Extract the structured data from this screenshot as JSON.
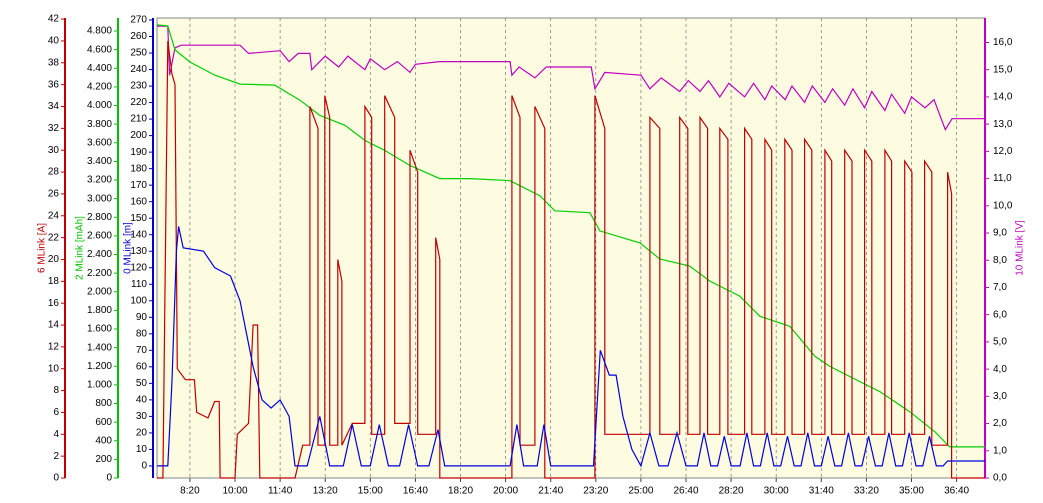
{
  "chart_data": {
    "type": "line",
    "xlim": [
      427,
      2263
    ],
    "xticks": [
      {
        "value": 500,
        "label": "8:20"
      },
      {
        "value": 600,
        "label": "10:00"
      },
      {
        "value": 700,
        "label": "11:40"
      },
      {
        "value": 800,
        "label": "13:20"
      },
      {
        "value": 900,
        "label": "15:00"
      },
      {
        "value": 1000,
        "label": "16:40"
      },
      {
        "value": 1100,
        "label": "18:20"
      },
      {
        "value": 1200,
        "label": "20:00"
      },
      {
        "value": 1300,
        "label": "21:40"
      },
      {
        "value": 1400,
        "label": "23:20"
      },
      {
        "value": 1500,
        "label": "25:00"
      },
      {
        "value": 1600,
        "label": "26:40"
      },
      {
        "value": 1700,
        "label": "28:20"
      },
      {
        "value": 1800,
        "label": "30:00"
      },
      {
        "value": 1900,
        "label": "31:40"
      },
      {
        "value": 2000,
        "label": "33:20"
      },
      {
        "value": 2100,
        "label": "35:00"
      },
      {
        "value": 2200,
        "label": "36:40"
      }
    ],
    "grid": true,
    "axes": [
      {
        "label": "6 MLink [A]",
        "color": "#c00000",
        "side": "left",
        "lim": [
          0,
          42.1
        ],
        "ticks": [
          0,
          2,
          4,
          6,
          8,
          10,
          12,
          14,
          16,
          18,
          20,
          22,
          24,
          26,
          28,
          30,
          32,
          34,
          36,
          38,
          40,
          42
        ]
      },
      {
        "label": "2 MLink [mAh]",
        "color": "#00c000",
        "side": "left",
        "lim": [
          0,
          4940
        ],
        "ticks": [
          0,
          200,
          400,
          600,
          800,
          {
            "value": 1000,
            "label": "1.000"
          },
          {
            "value": 1200,
            "label": "1.200"
          },
          {
            "value": 1400,
            "label": "1.400"
          },
          {
            "value": 1600,
            "label": "1.600"
          },
          {
            "value": 1800,
            "label": "1.800"
          },
          {
            "value": 2000,
            "label": "2.000"
          },
          {
            "value": 2200,
            "label": "2.200"
          },
          {
            "value": 2400,
            "label": "2.400"
          },
          {
            "value": 2600,
            "label": "2.600"
          },
          {
            "value": 2800,
            "label": "2.800"
          },
          {
            "value": 3000,
            "label": "3.000"
          },
          {
            "value": 3200,
            "label": "3.200"
          },
          {
            "value": 3400,
            "label": "3.400"
          },
          {
            "value": 3600,
            "label": "3.600"
          },
          {
            "value": 3800,
            "label": "3.800"
          },
          {
            "value": 4000,
            "label": "4.000"
          },
          {
            "value": 4200,
            "label": "4.200"
          },
          {
            "value": 4400,
            "label": "4.400"
          },
          {
            "value": 4600,
            "label": "4.600"
          },
          {
            "value": 4800,
            "label": "4.800"
          }
        ]
      },
      {
        "label": "0 MLink [m]",
        "color": "#0000d0",
        "side": "left",
        "lim": [
          -7.3,
          271.2
        ],
        "ticks": [
          0,
          10,
          20,
          30,
          40,
          50,
          60,
          70,
          80,
          90,
          100,
          110,
          120,
          130,
          140,
          150,
          160,
          170,
          180,
          190,
          200,
          210,
          220,
          230,
          240,
          250,
          260,
          270
        ]
      },
      {
        "label": "10 MLink [V]",
        "color": "#c000c0",
        "side": "right",
        "lim": [
          0,
          16.9
        ],
        "ticks": [
          {
            "value": 0,
            "label": "0,0"
          },
          {
            "value": 1,
            "label": "1,0"
          },
          {
            "value": 2,
            "label": "2,0"
          },
          {
            "value": 3,
            "label": "3,0"
          },
          {
            "value": 4,
            "label": "4,0"
          },
          {
            "value": 5,
            "label": "5,0"
          },
          {
            "value": 6,
            "label": "6,0"
          },
          {
            "value": 7,
            "label": "7,0"
          },
          {
            "value": 8,
            "label": "8,0"
          },
          {
            "value": 9,
            "label": "9,0"
          },
          {
            "value": 10,
            "label": "10,0"
          },
          {
            "value": 11,
            "label": "11,0"
          },
          {
            "value": 12,
            "label": "12,0"
          },
          {
            "value": 13,
            "label": "13,0"
          },
          {
            "value": 14,
            "label": "14,0"
          },
          {
            "value": 15,
            "label": "15,0"
          },
          {
            "value": 16,
            "label": "16,0"
          }
        ]
      }
    ],
    "series": [
      {
        "color": "#c000c0",
        "axis": 3,
        "x": [
          427,
          451,
          455,
          467,
          480,
          611,
          630,
          700,
          720,
          740,
          766,
          770,
          800,
          830,
          850,
          888,
          900,
          932,
          960,
          988,
          1000,
          1054,
          1210,
          1214,
          1230,
          1265,
          1290,
          1390,
          1398,
          1420,
          1500,
          1520,
          1545,
          1586,
          1605,
          1631,
          1650,
          1675,
          1695,
          1730,
          1750,
          1775,
          1790,
          1820,
          1835,
          1863,
          1880,
          1908,
          1925,
          1952,
          1970,
          1996,
          2012,
          2041,
          2056,
          2085,
          2100,
          2130,
          2150,
          2175,
          2190,
          2263
        ],
        "values": [
          16.6,
          16.6,
          14.8,
          15.8,
          15.9,
          15.9,
          15.6,
          15.7,
          15.3,
          15.6,
          15.6,
          15.0,
          15.5,
          15.1,
          15.5,
          15.0,
          15.4,
          15.0,
          15.3,
          14.9,
          15.2,
          15.3,
          15.3,
          14.8,
          15.1,
          14.7,
          15.1,
          15.1,
          14.3,
          14.9,
          14.8,
          14.3,
          14.7,
          14.2,
          14.6,
          14.2,
          14.6,
          14.0,
          14.5,
          14.0,
          14.5,
          13.9,
          14.4,
          13.9,
          14.4,
          13.8,
          14.4,
          13.8,
          14.3,
          13.7,
          14.3,
          13.6,
          14.2,
          13.5,
          14.1,
          13.4,
          14.0,
          13.6,
          13.9,
          12.8,
          13.2,
          13.2
        ]
      },
      {
        "color": "#00d000",
        "axis": 1,
        "x": [
          427,
          451,
          467,
          500,
          555,
          611,
          688,
          744,
          788,
          844,
          888,
          932,
          988,
          1054,
          1121,
          1209,
          1276,
          1309,
          1387,
          1409,
          1498,
          1542,
          1608,
          1653,
          1719,
          1764,
          1830,
          1886,
          1919,
          1985,
          2030,
          2096,
          2152,
          2185,
          2263
        ],
        "values": [
          4866,
          4855,
          4597,
          4467,
          4327,
          4230,
          4219,
          4057,
          3895,
          3787,
          3625,
          3518,
          3356,
          3215,
          3215,
          3194,
          3032,
          2870,
          2849,
          2654,
          2525,
          2352,
          2277,
          2115,
          1953,
          1737,
          1629,
          1306,
          1198,
          1036,
          928,
          712,
          496,
          334,
          334
        ]
      },
      {
        "color": "#c00000",
        "axis": 0,
        "x": [
          427,
          440,
          451,
          460,
          467,
          472,
          490,
          510,
          515,
          540,
          555,
          565,
          567,
          600,
          605,
          630,
          640,
          650,
          655,
          733,
          750,
          766,
          766,
          784,
          784,
          799,
          799,
          810,
          810,
          828,
          828,
          837,
          837,
          860,
          888,
          888,
          903,
          903,
          932,
          932,
          954,
          954,
          988,
          988,
          1005,
          1005,
          1045,
          1045,
          1054,
          1054,
          1070,
          1214,
          1214,
          1232,
          1232,
          1265,
          1265,
          1287,
          1287,
          1398,
          1398,
          1420,
          1420,
          1480,
          1520,
          1520,
          1542,
          1542,
          1586,
          1586,
          1604,
          1604,
          1631,
          1631,
          1648,
          1648,
          1675,
          1675,
          1693,
          1693,
          1730,
          1730,
          1746,
          1746,
          1775,
          1775,
          1790,
          1790,
          1819,
          1819,
          1835,
          1835,
          1863,
          1863,
          1879,
          1879,
          1908,
          1908,
          1923,
          1923,
          1952,
          1952,
          1968,
          1968,
          1996,
          1996,
          2012,
          2012,
          2041,
          2041,
          2056,
          2056,
          2085,
          2085,
          2101,
          2101,
          2129,
          2129,
          2145,
          2145,
          2180,
          2180,
          2189,
          2189,
          2263
        ],
        "values": [
          0,
          0,
          40,
          37,
          36,
          10,
          9,
          9,
          6,
          5.5,
          7,
          7,
          0,
          0,
          4,
          5,
          14,
          14,
          0,
          0,
          3,
          3,
          34,
          32,
          3,
          3,
          35,
          33,
          3,
          3,
          20,
          18,
          3,
          5,
          5,
          34,
          33,
          4,
          4,
          35,
          33,
          5,
          5,
          30,
          28,
          4,
          4,
          22,
          20,
          0,
          0,
          0,
          35,
          33,
          3,
          3,
          34,
          32,
          0,
          0,
          35,
          32,
          4,
          4,
          4,
          33,
          32,
          4,
          4,
          33,
          32,
          4,
          4,
          33,
          32,
          4,
          4,
          32,
          31,
          4,
          4,
          32,
          31,
          4,
          4,
          31,
          30,
          4,
          4,
          31,
          30,
          4,
          4,
          31,
          30,
          4,
          4,
          30,
          29,
          4,
          4,
          30,
          29,
          4,
          4,
          30,
          29,
          4,
          4,
          30,
          29,
          4,
          4,
          29,
          28,
          4,
          4,
          29,
          28,
          3,
          3,
          28,
          26,
          0,
          0
        ]
      },
      {
        "color": "#0000e0",
        "axis": 2,
        "x": [
          427,
          451,
          460,
          470,
          475,
          485,
          530,
          555,
          590,
          611,
          640,
          660,
          680,
          700,
          720,
          733,
          760,
          788,
          810,
          840,
          860,
          880,
          900,
          920,
          940,
          965,
          985,
          1005,
          1030,
          1050,
          1065,
          1210,
          1225,
          1240,
          1270,
          1285,
          1300,
          1395,
          1410,
          1430,
          1445,
          1460,
          1480,
          1500,
          1520,
          1540,
          1560,
          1580,
          1600,
          1625,
          1640,
          1655,
          1670,
          1685,
          1700,
          1720,
          1735,
          1750,
          1765,
          1780,
          1795,
          1810,
          1825,
          1840,
          1855,
          1870,
          1885,
          1900,
          1915,
          1930,
          1945,
          1960,
          1975,
          1990,
          2005,
          2020,
          2035,
          2050,
          2065,
          2080,
          2095,
          2110,
          2125,
          2140,
          2155,
          2170,
          2180,
          2263
        ],
        "values": [
          0,
          0,
          50,
          130,
          145,
          132,
          130,
          120,
          115,
          100,
          60,
          40,
          35,
          40,
          30,
          0,
          0,
          30,
          0,
          0,
          25,
          0,
          0,
          25,
          0,
          0,
          25,
          0,
          0,
          22,
          0,
          0,
          25,
          0,
          0,
          25,
          0,
          0,
          70,
          55,
          55,
          30,
          10,
          0,
          20,
          0,
          0,
          20,
          0,
          0,
          20,
          0,
          0,
          18,
          0,
          0,
          20,
          0,
          0,
          20,
          0,
          0,
          18,
          0,
          0,
          20,
          0,
          0,
          18,
          0,
          0,
          20,
          0,
          0,
          18,
          0,
          0,
          20,
          0,
          0,
          20,
          0,
          0,
          18,
          0,
          0,
          3,
          3
        ]
      }
    ]
  }
}
